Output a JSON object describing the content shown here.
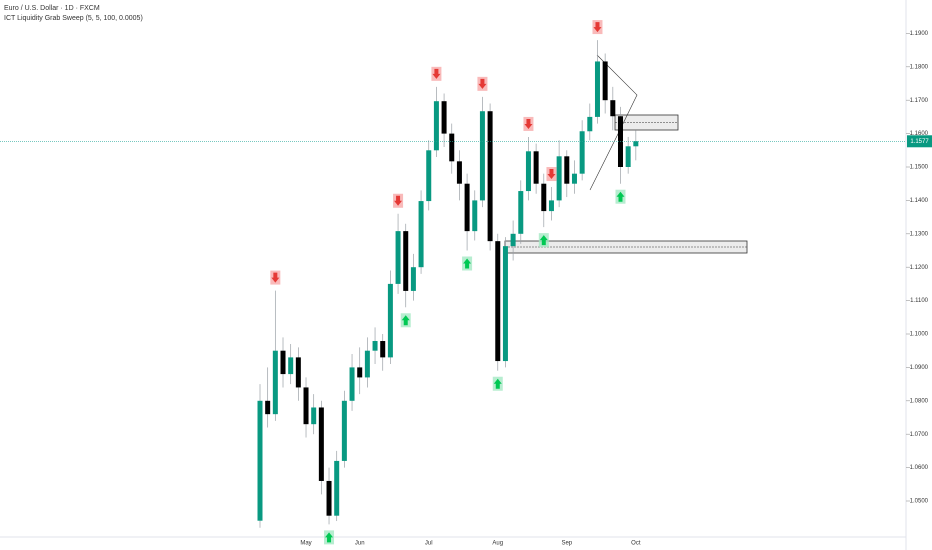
{
  "chart_data": {
    "type": "candlestick",
    "title": "Euro / U.S. Dollar · 1D · FXCM",
    "subtitle": "ICT Liquidity Grab Sweep (5, 5, 100, 0.0005)",
    "categories": [
      null,
      null,
      null,
      null,
      null,
      null,
      "May",
      null,
      null,
      null,
      null,
      null,
      null,
      "Jun",
      null,
      null,
      null,
      null,
      null,
      null,
      null,
      null,
      "Jul",
      null,
      null,
      null,
      null,
      null,
      null,
      null,
      null,
      "Aug",
      null,
      null,
      null,
      null,
      null,
      null,
      null,
      null,
      "Sep",
      null,
      null,
      null,
      null,
      null,
      null,
      null,
      null,
      "Oct"
    ],
    "open": [
      1.0441,
      1.08,
      1.076,
      1.095,
      1.088,
      1.093,
      1.084,
      1.073,
      1.078,
      1.056,
      1.0456,
      1.062,
      1.08,
      1.09,
      1.087,
      1.095,
      1.0979,
      1.093,
      1.115,
      1.1308,
      1.1129,
      1.12,
      1.1398,
      1.155,
      1.1697,
      1.16,
      1.1517,
      1.145,
      1.1308,
      1.14,
      1.1667,
      1.1278,
      1.0919,
      1.1263,
      1.13,
      1.1428,
      1.1547,
      1.145,
      1.1368,
      1.14,
      1.1532,
      1.145,
      1.148,
      1.1607,
      1.165,
      1.1816,
      1.17,
      1.1652,
      1.15,
      1.1562
    ],
    "high": [
      1.085,
      1.09,
      1.113,
      1.099,
      1.097,
      1.096,
      1.087,
      1.082,
      1.08,
      1.06,
      1.065,
      1.083,
      1.094,
      1.096,
      1.099,
      1.102,
      1.1,
      1.119,
      1.136,
      1.133,
      1.124,
      1.143,
      1.158,
      1.174,
      1.172,
      1.163,
      1.155,
      1.148,
      1.143,
      1.171,
      1.169,
      1.13,
      1.129,
      1.134,
      1.146,
      1.159,
      1.157,
      1.148,
      1.144,
      1.158,
      1.155,
      1.152,
      1.164,
      1.169,
      1.188,
      1.184,
      1.174,
      1.168,
      1.159,
      1.161
    ],
    "low": [
      1.042,
      1.072,
      1.074,
      1.084,
      1.085,
      1.08,
      1.069,
      1.07,
      1.052,
      1.043,
      1.044,
      1.06,
      1.077,
      1.082,
      1.084,
      1.091,
      1.089,
      1.091,
      1.112,
      1.108,
      1.11,
      1.118,
      1.137,
      1.153,
      1.156,
      1.148,
      1.14,
      1.125,
      1.128,
      1.138,
      1.125,
      1.089,
      1.09,
      1.122,
      1.127,
      1.14,
      1.142,
      1.132,
      1.134,
      1.138,
      1.141,
      1.142,
      1.146,
      1.158,
      1.163,
      1.166,
      1.161,
      1.145,
      1.148,
      1.152
    ],
    "close": [
      1.08,
      1.076,
      1.095,
      1.088,
      1.093,
      1.084,
      1.073,
      1.078,
      1.056,
      1.0456,
      1.062,
      1.08,
      1.09,
      1.087,
      1.095,
      1.0979,
      1.093,
      1.115,
      1.1308,
      1.1129,
      1.12,
      1.1398,
      1.155,
      1.1697,
      1.16,
      1.1517,
      1.145,
      1.1308,
      1.14,
      1.1667,
      1.1278,
      1.0919,
      1.1263,
      1.13,
      1.1428,
      1.1547,
      1.145,
      1.1368,
      1.14,
      1.1532,
      1.145,
      1.148,
      1.1607,
      1.165,
      1.1816,
      1.17,
      1.1652,
      1.15,
      1.1562,
      1.1577
    ],
    "up_color": "#089981",
    "down_color": "#000000",
    "sell_signals": [
      2,
      18,
      23,
      29,
      35,
      38,
      44
    ],
    "buy_signals": [
      9,
      19,
      27,
      31,
      37,
      47
    ],
    "last_price": 1.1577,
    "ylim": [
      1.04,
      1.2
    ],
    "yticks": [
      {
        "value": 1.05,
        "label": "1.0500"
      },
      {
        "value": 1.06,
        "label": "1.0600"
      },
      {
        "value": 1.07,
        "label": "1.0700"
      },
      {
        "value": 1.08,
        "label": "1.0800"
      },
      {
        "value": 1.09,
        "label": "1.0900"
      },
      {
        "value": 1.1,
        "label": "1.1000"
      },
      {
        "value": 1.11,
        "label": "1.1100"
      },
      {
        "value": 1.12,
        "label": "1.1200"
      },
      {
        "value": 1.13,
        "label": "1.1300"
      },
      {
        "value": 1.14,
        "label": "1.1400"
      },
      {
        "value": 1.15,
        "label": "1.1500"
      },
      {
        "value": 1.16,
        "label": "1.1600"
      },
      {
        "value": 1.17,
        "label": "1.1700"
      },
      {
        "value": 1.18,
        "label": "1.1800"
      },
      {
        "value": 1.19,
        "label": "1.1900"
      }
    ]
  }
}
